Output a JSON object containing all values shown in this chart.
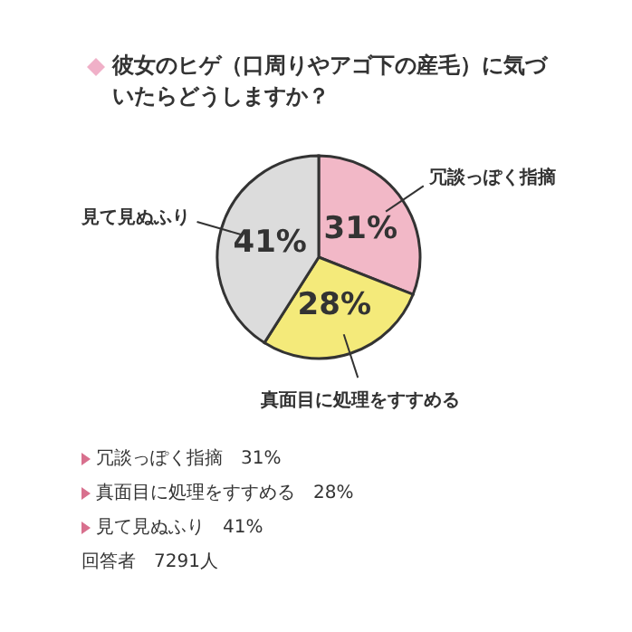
{
  "chart_data": {
    "type": "pie",
    "title": "彼女のヒゲ（口周りやアゴ下の産毛）に気づいたらどうしますか？",
    "categories": [
      "冗談っぽく指摘",
      "真面目に処理をすすめる",
      "見て見ぬふり"
    ],
    "values": [
      31,
      28,
      41
    ],
    "colors": [
      "#f2b8c7",
      "#f4ea7a",
      "#dcdcdc"
    ],
    "value_labels": [
      "31%",
      "28%",
      "41%"
    ],
    "annotations": [
      "冗談っぽく指摘　31%",
      "真面目に処理をすすめる　28%",
      "見て見ぬふり　41%",
      "回答者　7291人"
    ]
  }
}
